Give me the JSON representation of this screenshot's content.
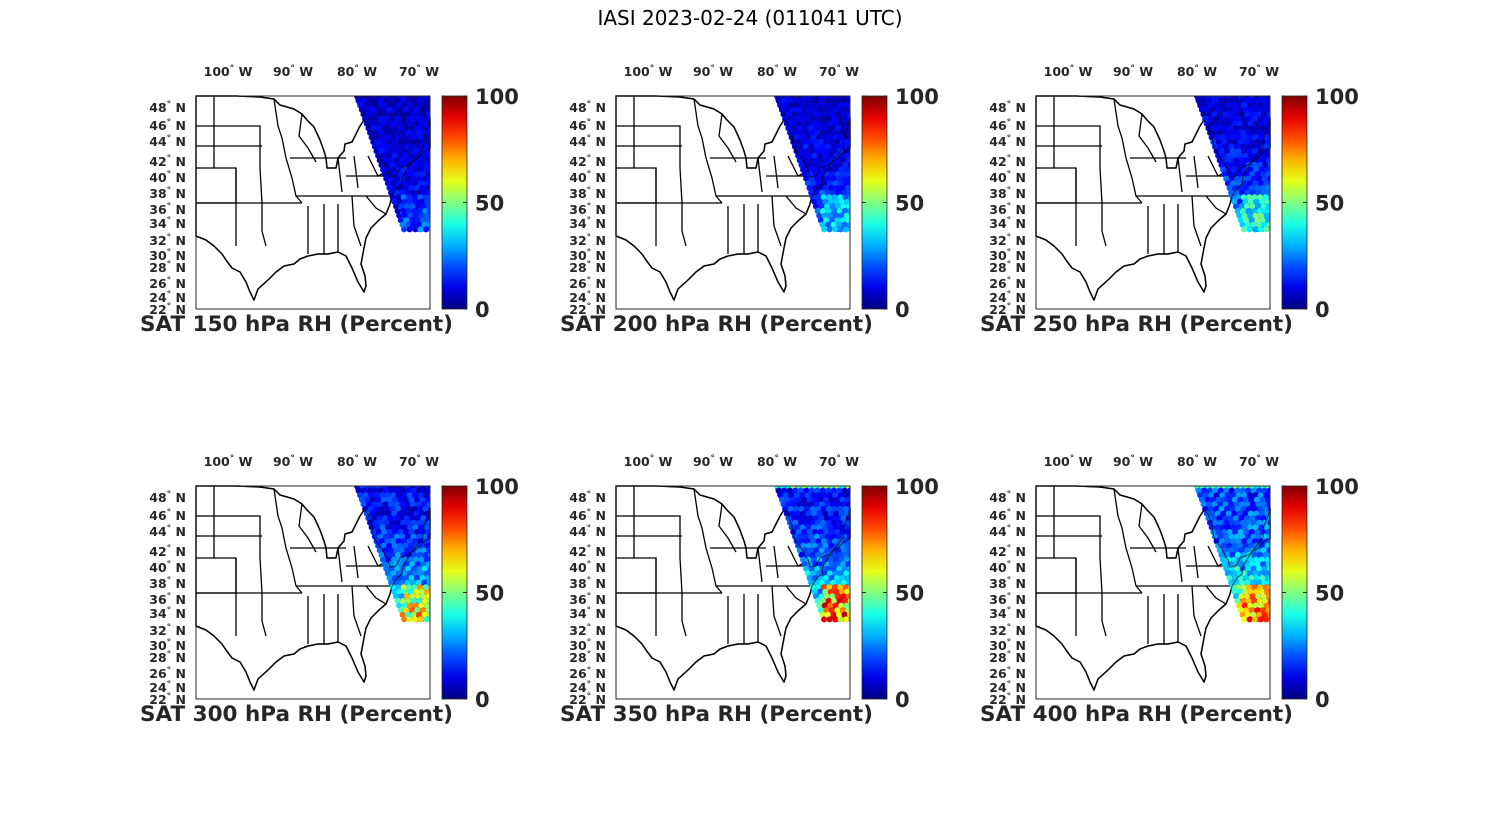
{
  "figure": {
    "title": "IASI 2023-02-24 (011041 UTC)"
  },
  "colors": {
    "colormap": "jet",
    "swath_low": "#0a1fb0",
    "map_lines": "#000000"
  },
  "map": {
    "lon_ticks": [
      "100",
      "90",
      "80",
      "70"
    ],
    "lon_suffix": "W",
    "lat_ticks": [
      "48",
      "46",
      "44",
      "42",
      "40",
      "38",
      "36",
      "34",
      "32",
      "30",
      "28",
      "26",
      "24",
      "22"
    ],
    "lat_suffix": "N",
    "colorbar_ticks": [
      "100",
      "50",
      "0"
    ]
  },
  "chart_data": [
    {
      "type": "map",
      "title": "SAT 150 hPa RH (Percent)",
      "variable": "RH",
      "units": "Percent",
      "clim": [
        0,
        100
      ],
      "pressure_hPa": 150,
      "swath_summary": "mostly 0-15 percent (dark blue), slightly higher (~20-30) south of 36N offshore"
    },
    {
      "type": "map",
      "title": "SAT 200 hPa RH (Percent)",
      "variable": "RH",
      "units": "Percent",
      "clim": [
        0,
        100
      ],
      "pressure_hPa": 200,
      "swath_summary": "mostly 0-15 percent, ~30-40 percent near Cape Hatteras, one ~75 percent spot near 36N"
    },
    {
      "type": "map",
      "title": "SAT 250 hPa RH (Percent)",
      "variable": "RH",
      "units": "Percent",
      "clim": [
        0,
        100
      ],
      "pressure_hPa": 250,
      "swath_summary": "north mostly 5-15 percent, south of 40N ~30-50 percent"
    },
    {
      "type": "map",
      "title": "SAT 300 hPa RH (Percent)",
      "variable": "RH",
      "units": "Percent",
      "clim": [
        0,
        100
      ],
      "pressure_hPa": 300,
      "swath_summary": "north 5-20 percent, south 40-60 percent, ~75-85 percent near 33N"
    },
    {
      "type": "map",
      "title": "SAT 350 hPa RH (Percent)",
      "variable": "RH",
      "units": "Percent",
      "clim": [
        0,
        100
      ],
      "pressure_hPa": 350,
      "swath_summary": "north edge ~40 percent, interior 5-20 percent, south ~60-100 percent near 33N"
    },
    {
      "type": "map",
      "title": "SAT 400 hPa RH (Percent)",
      "variable": "RH",
      "units": "Percent",
      "clim": [
        0,
        100
      ],
      "pressure_hPa": 400,
      "swath_summary": "north edge ~45 percent, interior 10-25 percent, ~70-90 percent near 35N"
    }
  ]
}
